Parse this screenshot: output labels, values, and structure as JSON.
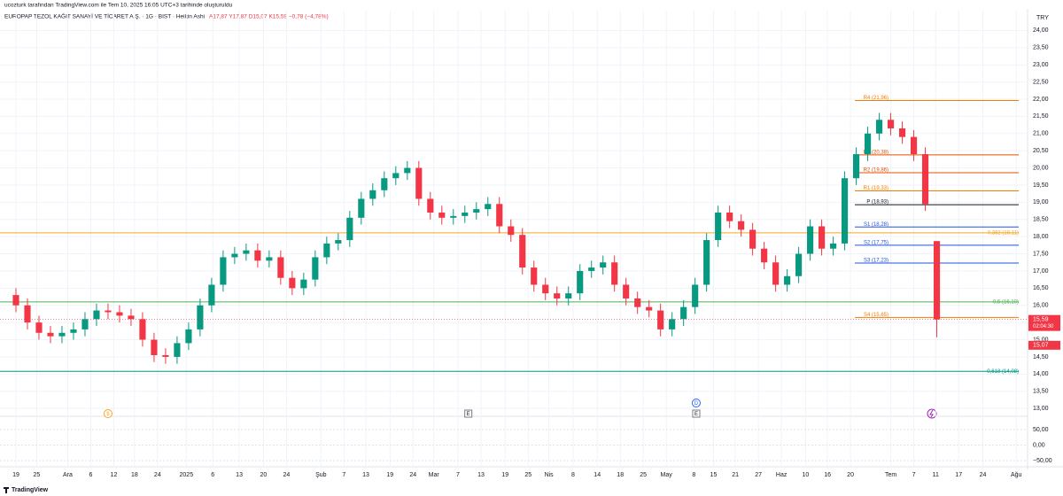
{
  "chart_data": {
    "type": "candlestick",
    "credit": "ucozturk tarafından TradingView.com ile Tem 10, 2025 16:05 UTC+3 tarihinde oluşturuldu",
    "title": "EUROPAP TEZOL KAĞIT SANAYİ VE TİCARET A.Ş. · 1G · BIST · Heikin Ashi",
    "ohlc_text": "A17,87 Y17,87 D15,07 K15,59 −0,78 (−4,78%)",
    "currency": "TRY",
    "brand": "TradingView",
    "up_color": "#089981",
    "down_color": "#f23645",
    "open": [
      16.3,
      16.0,
      15.5,
      15.2,
      15.1,
      15.2,
      15.3,
      15.6,
      15.85,
      15.8,
      15.7,
      15.6,
      15.0,
      14.55,
      14.5,
      14.9,
      15.3,
      16.0,
      16.6,
      17.4,
      17.5,
      17.6,
      17.3,
      17.4,
      16.8,
      16.5,
      16.75,
      17.4,
      17.8,
      17.9,
      18.55,
      19.1,
      19.35,
      19.7,
      19.85,
      20.0,
      19.1,
      18.7,
      18.55,
      18.6,
      18.7,
      18.8,
      18.95,
      18.3,
      18.05,
      17.1,
      16.6,
      16.35,
      16.2,
      16.35,
      17.0,
      17.1,
      17.25,
      16.6,
      16.2,
      15.95,
      15.85,
      15.3,
      15.6,
      15.95,
      16.6,
      17.9,
      18.7,
      18.45,
      18.2,
      17.65,
      17.25,
      16.6,
      16.85,
      17.5,
      18.3,
      17.65,
      17.8,
      19.7,
      20.4,
      21.0,
      21.4,
      21.15,
      20.9,
      20.4,
      17.87
    ],
    "high": [
      16.5,
      16.2,
      15.7,
      15.4,
      15.4,
      15.5,
      15.8,
      16.05,
      16.05,
      16.0,
      15.9,
      15.8,
      15.2,
      14.75,
      15.1,
      15.5,
      16.2,
      16.8,
      17.6,
      17.7,
      17.8,
      17.8,
      17.6,
      17.6,
      17.0,
      16.95,
      17.6,
      18.0,
      18.1,
      18.75,
      19.3,
      19.55,
      19.9,
      20.05,
      20.2,
      20.2,
      19.3,
      18.9,
      18.8,
      18.9,
      19.0,
      19.15,
      19.15,
      18.5,
      18.25,
      17.3,
      16.8,
      16.55,
      16.55,
      17.2,
      17.3,
      17.45,
      17.45,
      16.8,
      16.4,
      16.15,
      16.05,
      15.8,
      16.15,
      16.8,
      18.1,
      18.9,
      18.9,
      18.65,
      18.4,
      17.85,
      17.45,
      17.05,
      17.7,
      18.5,
      18.5,
      18.0,
      19.9,
      20.6,
      21.2,
      21.6,
      21.6,
      21.35,
      21.1,
      20.6,
      17.87
    ],
    "low": [
      15.8,
      15.3,
      15.0,
      14.9,
      14.9,
      15.0,
      15.1,
      15.4,
      15.6,
      15.5,
      15.4,
      14.8,
      14.35,
      14.3,
      14.3,
      14.7,
      15.1,
      15.8,
      16.4,
      17.2,
      17.3,
      17.1,
      17.1,
      16.6,
      16.3,
      16.3,
      16.55,
      17.2,
      17.6,
      17.7,
      18.35,
      18.9,
      19.15,
      19.5,
      19.65,
      18.9,
      18.5,
      18.35,
      18.35,
      18.4,
      18.5,
      18.6,
      18.1,
      17.85,
      16.9,
      16.4,
      16.15,
      16.0,
      16.0,
      16.15,
      16.8,
      16.9,
      16.4,
      16.0,
      15.75,
      15.65,
      15.1,
      15.1,
      15.4,
      15.75,
      16.4,
      17.7,
      18.25,
      18.0,
      17.45,
      17.05,
      16.4,
      16.4,
      16.65,
      17.3,
      17.45,
      17.45,
      17.6,
      19.5,
      20.2,
      20.8,
      20.95,
      20.7,
      20.2,
      18.75,
      15.07
    ],
    "close": [
      16.0,
      15.5,
      15.2,
      15.1,
      15.2,
      15.3,
      15.6,
      15.85,
      15.8,
      15.7,
      15.6,
      15.0,
      14.55,
      14.5,
      14.9,
      15.3,
      16.0,
      16.6,
      17.4,
      17.5,
      17.6,
      17.3,
      17.4,
      16.8,
      16.5,
      16.75,
      17.4,
      17.8,
      17.9,
      18.55,
      19.1,
      19.35,
      19.7,
      19.85,
      20.0,
      19.1,
      18.7,
      18.55,
      18.6,
      18.7,
      18.8,
      18.95,
      18.3,
      18.05,
      17.1,
      16.6,
      16.35,
      16.2,
      16.35,
      17.0,
      17.1,
      17.25,
      16.6,
      16.2,
      15.95,
      15.85,
      15.3,
      15.6,
      15.95,
      16.6,
      17.9,
      18.7,
      18.45,
      18.2,
      17.65,
      17.25,
      16.6,
      16.85,
      17.5,
      18.3,
      17.65,
      17.8,
      19.7,
      20.4,
      21.0,
      21.4,
      21.15,
      20.9,
      20.4,
      18.95,
      15.59
    ],
    "xlim": [
      -1,
      87.5
    ],
    "xticks": [
      {
        "value": 0,
        "label": "19"
      },
      {
        "value": 1.8,
        "label": "25"
      },
      {
        "value": 4.5,
        "label": "Ara"
      },
      {
        "value": 6.5,
        "label": "6"
      },
      {
        "value": 8.5,
        "label": "12"
      },
      {
        "value": 10.3,
        "label": "18"
      },
      {
        "value": 12.3,
        "label": "24"
      },
      {
        "value": 14.8,
        "label": "2025"
      },
      {
        "value": 17.1,
        "label": "6"
      },
      {
        "value": 19.4,
        "label": "13"
      },
      {
        "value": 21.5,
        "label": "20"
      },
      {
        "value": 23.5,
        "label": "24"
      },
      {
        "value": 26.5,
        "label": "Şub"
      },
      {
        "value": 28.5,
        "label": "7"
      },
      {
        "value": 30.4,
        "label": "13"
      },
      {
        "value": 32.5,
        "label": "19"
      },
      {
        "value": 34.5,
        "label": "24"
      },
      {
        "value": 36.3,
        "label": "Mar"
      },
      {
        "value": 38.4,
        "label": "7"
      },
      {
        "value": 40.4,
        "label": "13"
      },
      {
        "value": 42.5,
        "label": "19"
      },
      {
        "value": 44.5,
        "label": "25"
      },
      {
        "value": 46.3,
        "label": "Nis"
      },
      {
        "value": 48.4,
        "label": "8"
      },
      {
        "value": 50.5,
        "label": "14"
      },
      {
        "value": 52.5,
        "label": "18"
      },
      {
        "value": 54.5,
        "label": "25"
      },
      {
        "value": 56.5,
        "label": "May"
      },
      {
        "value": 58.9,
        "label": "8"
      },
      {
        "value": 60.6,
        "label": "15"
      },
      {
        "value": 62.5,
        "label": "21"
      },
      {
        "value": 64.5,
        "label": "27"
      },
      {
        "value": 66.5,
        "label": "Haz"
      },
      {
        "value": 68.6,
        "label": "10"
      },
      {
        "value": 70.5,
        "label": "16"
      },
      {
        "value": 72.5,
        "label": "20"
      },
      {
        "value": 76,
        "label": "Tem"
      },
      {
        "value": 78,
        "label": "7"
      },
      {
        "value": 79.9,
        "label": "11"
      },
      {
        "value": 81.9,
        "label": "17"
      },
      {
        "value": 84,
        "label": "24"
      },
      {
        "value": 86.9,
        "label": "Ağu"
      }
    ],
    "ylim": [
      12.9,
      24.5
    ],
    "yticks": [
      {
        "value": 24,
        "label": "24,00"
      },
      {
        "value": 23.5,
        "label": "23,50"
      },
      {
        "value": 23,
        "label": "23,00"
      },
      {
        "value": 22.5,
        "label": "22,50"
      },
      {
        "value": 22,
        "label": "22,00"
      },
      {
        "value": 21.5,
        "label": "21,50"
      },
      {
        "value": 21,
        "label": "21,00"
      },
      {
        "value": 20.5,
        "label": "20,50"
      },
      {
        "value": 20,
        "label": "20,00"
      },
      {
        "value": 19.5,
        "label": "19,50"
      },
      {
        "value": 19,
        "label": "19,00"
      },
      {
        "value": 18.5,
        "label": "18,50"
      },
      {
        "value": 18,
        "label": "18,00"
      },
      {
        "value": 17.5,
        "label": "17,50"
      },
      {
        "value": 17,
        "label": "17,00"
      },
      {
        "value": 16.5,
        "label": "16,50"
      },
      {
        "value": 16,
        "label": "16,00"
      },
      {
        "value": 15.5,
        "label": "15,50"
      },
      {
        "value": 15,
        "label": "15,00"
      },
      {
        "value": 14.5,
        "label": "14,50"
      },
      {
        "value": 14,
        "label": "14,00"
      },
      {
        "value": 13.5,
        "label": "13,50"
      },
      {
        "value": 13,
        "label": "13,00"
      }
    ],
    "grid": true,
    "pivots": [
      {
        "label": "R4 (21,96)",
        "value": 21.96,
        "color": "#f57c00"
      },
      {
        "label": "R3 (20,38)",
        "value": 20.38,
        "color": "#e65100"
      },
      {
        "label": "R2 (19,86)",
        "value": 19.86,
        "color": "#e65100"
      },
      {
        "label": "R1 (19,33)",
        "value": 19.33,
        "color": "#f57c00"
      },
      {
        "label": "P (18,93)",
        "value": 18.93,
        "color": "#131722"
      },
      {
        "label": "S1 (18,28)",
        "value": 18.28,
        "color": "#1e53e5"
      },
      {
        "label": "S2 (17,75)",
        "value": 17.75,
        "color": "#1e53e5"
      },
      {
        "label": "S3 (17,23)",
        "value": 17.23,
        "color": "#1e53e5"
      },
      {
        "label": "S4 (15,65)",
        "value": 15.65,
        "color": "#f57c00"
      }
    ],
    "fib_levels": [
      {
        "label": "0,382 (18,11)",
        "value": 18.11,
        "color": "#f5a623"
      },
      {
        "label": "0,5 (16,10)",
        "value": 16.1,
        "color": "#4caf50"
      },
      {
        "label": "0,618 (14,08)",
        "value": 14.08,
        "color": "#009688"
      }
    ],
    "last_price": {
      "value": 15.59,
      "label": "15,59"
    },
    "countdown": "02:04:30",
    "low_price": {
      "value": 15.07,
      "label": "15,07"
    },
    "events": [
      {
        "x": 8,
        "label": "$"
      },
      {
        "x": 39.3,
        "label": "E"
      },
      {
        "x": 59.1,
        "label": "D"
      },
      {
        "x": 59.1,
        "label": "E"
      }
    ],
    "osc_ylim": [
      -64,
      70
    ],
    "osc_yticks": [
      {
        "value": 50,
        "label": "50,00"
      },
      {
        "value": 0,
        "label": "0,00"
      },
      {
        "value": -50,
        "label": "−50,00"
      }
    ]
  }
}
